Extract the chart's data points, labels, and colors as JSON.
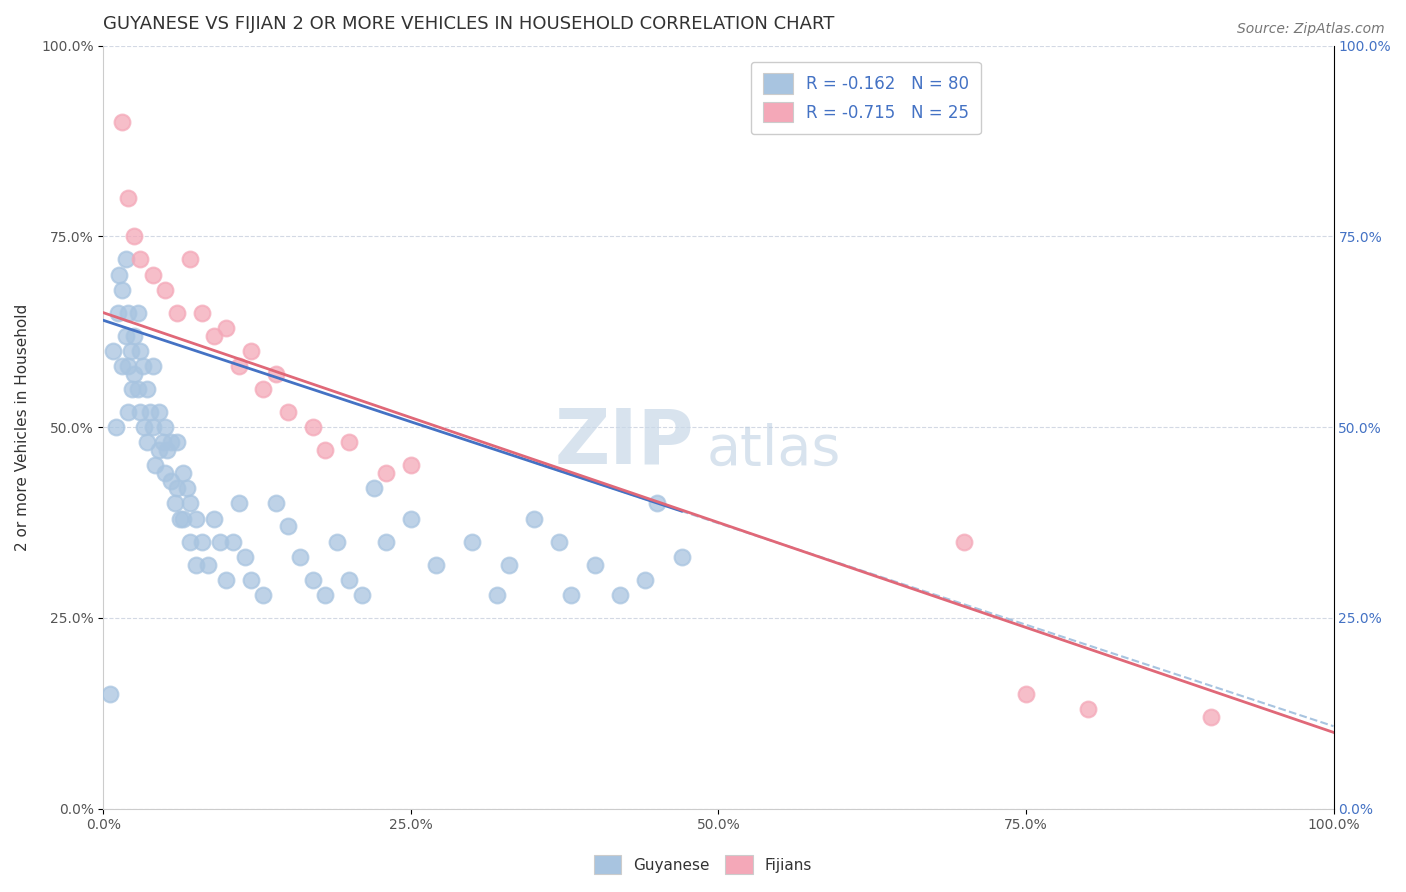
{
  "title": "GUYANESE VS FIJIAN 2 OR MORE VEHICLES IN HOUSEHOLD CORRELATION CHART",
  "source": "Source: ZipAtlas.com",
  "xlabel_bottom": "Guyanese",
  "ylabel": "2 or more Vehicles in Household",
  "watermark_zip": "ZIP",
  "watermark_atlas": "atlas",
  "xlim": [
    0,
    100
  ],
  "ylim": [
    0,
    100
  ],
  "xticks": [
    0,
    25,
    50,
    75,
    100
  ],
  "yticks": [
    0,
    25,
    50,
    75,
    100
  ],
  "xtick_labels": [
    "0.0%",
    "25.0%",
    "50.0%",
    "75.0%",
    "100.0%"
  ],
  "ytick_labels": [
    "0.0%",
    "25.0%",
    "50.0%",
    "75.0%",
    "100.0%"
  ],
  "blue_color": "#a8c4e0",
  "pink_color": "#f4a8b8",
  "blue_line_color": "#4472c4",
  "pink_line_color": "#e06878",
  "dashed_line_color": "#a8c4e0",
  "legend_text_color": "#4472c4",
  "right_tick_color": "#4472c4",
  "R_blue": -0.162,
  "N_blue": 80,
  "R_pink": -0.715,
  "N_pink": 25,
  "blue_scatter_x": [
    0.5,
    0.8,
    1.0,
    1.2,
    1.3,
    1.5,
    1.5,
    1.8,
    1.8,
    2.0,
    2.0,
    2.0,
    2.2,
    2.3,
    2.5,
    2.5,
    2.8,
    2.8,
    3.0,
    3.0,
    3.2,
    3.3,
    3.5,
    3.5,
    3.8,
    4.0,
    4.0,
    4.2,
    4.5,
    4.5,
    4.8,
    5.0,
    5.0,
    5.2,
    5.5,
    5.5,
    5.8,
    6.0,
    6.0,
    6.2,
    6.5,
    6.5,
    6.8,
    7.0,
    7.0,
    7.5,
    7.5,
    8.0,
    8.5,
    9.0,
    9.5,
    10.0,
    10.5,
    11.0,
    11.5,
    12.0,
    13.0,
    14.0,
    15.0,
    16.0,
    17.0,
    18.0,
    19.0,
    20.0,
    21.0,
    22.0,
    23.0,
    25.0,
    27.0,
    30.0,
    32.0,
    33.0,
    35.0,
    37.0,
    38.0,
    40.0,
    42.0,
    44.0,
    45.0,
    47.0
  ],
  "blue_scatter_y": [
    15.0,
    60.0,
    50.0,
    65.0,
    70.0,
    68.0,
    58.0,
    72.0,
    62.0,
    65.0,
    58.0,
    52.0,
    60.0,
    55.0,
    62.0,
    57.0,
    65.0,
    55.0,
    60.0,
    52.0,
    58.0,
    50.0,
    55.0,
    48.0,
    52.0,
    58.0,
    50.0,
    45.0,
    52.0,
    47.0,
    48.0,
    50.0,
    44.0,
    47.0,
    43.0,
    48.0,
    40.0,
    48.0,
    42.0,
    38.0,
    44.0,
    38.0,
    42.0,
    40.0,
    35.0,
    38.0,
    32.0,
    35.0,
    32.0,
    38.0,
    35.0,
    30.0,
    35.0,
    40.0,
    33.0,
    30.0,
    28.0,
    40.0,
    37.0,
    33.0,
    30.0,
    28.0,
    35.0,
    30.0,
    28.0,
    42.0,
    35.0,
    38.0,
    32.0,
    35.0,
    28.0,
    32.0,
    38.0,
    35.0,
    28.0,
    32.0,
    28.0,
    30.0,
    40.0,
    33.0
  ],
  "pink_scatter_x": [
    1.5,
    2.0,
    3.0,
    4.0,
    5.0,
    6.0,
    7.0,
    8.0,
    9.0,
    10.0,
    11.0,
    12.0,
    13.0,
    14.0,
    15.0,
    17.0,
    20.0,
    23.0,
    25.0,
    70.0,
    75.0,
    80.0,
    90.0,
    2.5,
    18.0
  ],
  "pink_scatter_y": [
    90.0,
    80.0,
    72.0,
    70.0,
    68.0,
    65.0,
    72.0,
    65.0,
    62.0,
    63.0,
    58.0,
    60.0,
    55.0,
    57.0,
    52.0,
    50.0,
    48.0,
    44.0,
    45.0,
    35.0,
    15.0,
    13.0,
    12.0,
    75.0,
    47.0
  ],
  "blue_trend_x0": 0,
  "blue_trend_y0": 64.0,
  "blue_trend_x1": 47,
  "blue_trend_y1": 39.0,
  "blue_dash_x0": 35,
  "blue_dash_x1": 100,
  "pink_trend_x0": 0,
  "pink_trend_y0": 65.0,
  "pink_trend_x1": 100,
  "pink_trend_y1": 10.0,
  "title_fontsize": 13,
  "axis_label_fontsize": 11,
  "tick_fontsize": 10,
  "legend_fontsize": 12,
  "watermark_fontsize_big": 55,
  "watermark_fontsize_small": 40,
  "source_fontsize": 10
}
